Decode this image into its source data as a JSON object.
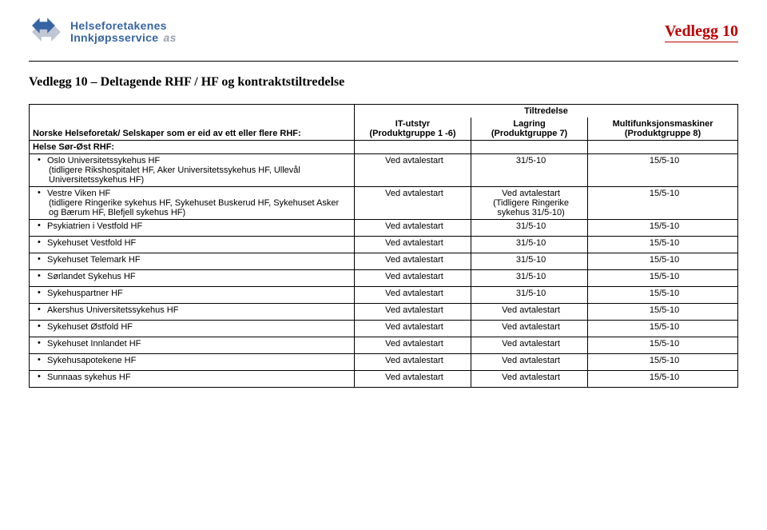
{
  "colors": {
    "brand_blue": "#3765a3",
    "brand_gray": "#9aa1b2",
    "vedlegg_red": "#c00000",
    "border": "#000000",
    "bg": "#ffffff"
  },
  "logo": {
    "line1": "Helseforetakenes",
    "line2": "Innkjøpsservice",
    "suffix": "as"
  },
  "vedlegg_label": "Vedlegg 10",
  "doc_title": "Vedlegg 10 – Deltagende RHF / HF og kontraktstiltredelse",
  "table": {
    "tiltredelse_header": "Tiltredelse",
    "col1_header": "Norske Helseforetak/ Selskaper som er eid av ett eller flere RHF:",
    "col2_header_l1": "IT-utstyr",
    "col2_header_l2": "(Produktgruppe 1 -6)",
    "col3_header_l1": "Lagring",
    "col3_header_l2": "(Produktgruppe 7)",
    "col4_header_l1": "Multifunksjonsmaskiner",
    "col4_header_l2": "(Produktgruppe 8)",
    "section": "Helse Sør-Øst RHF:",
    "rows": [
      {
        "name": "Oslo Universitetssykehus HF",
        "sub": "(tidligere Rikshospitalet HF, Aker Universitetssykehus HF, Ullevål Universitetssykehus HF)",
        "c2": "Ved avtalestart",
        "c3": "31/5-10",
        "c4": "15/5-10"
      },
      {
        "name": "Vestre Viken HF",
        "sub": "(tidligere Ringerike sykehus HF, Sykehuset Buskerud HF, Sykehuset Asker og Bærum HF, Blefjell sykehus HF)",
        "c2": "Ved avtalestart",
        "c3": "Ved avtalestart\n(Tidligere Ringerike sykehus 31/5-10)",
        "c4": "15/5-10"
      },
      {
        "name": "Psykiatrien i Vestfold HF",
        "c2": "Ved avtalestart",
        "c3": "31/5-10",
        "c4": "15/5-10"
      },
      {
        "name": "Sykehuset Vestfold HF",
        "c2": "Ved avtalestart",
        "c3": "31/5-10",
        "c4": "15/5-10"
      },
      {
        "name": "Sykehuset Telemark HF",
        "c2": "Ved avtalestart",
        "c3": "31/5-10",
        "c4": "15/5-10"
      },
      {
        "name": "Sørlandet Sykehus HF",
        "c2": "Ved avtalestart",
        "c3": "31/5-10",
        "c4": "15/5-10"
      },
      {
        "name": "Sykehuspartner HF",
        "c2": "Ved avtalestart",
        "c3": "31/5-10",
        "c4": "15/5-10"
      },
      {
        "name": "Akershus Universitetssykehus HF",
        "c2": "Ved avtalestart",
        "c3": "Ved avtalestart",
        "c4": "15/5-10"
      },
      {
        "name": "Sykehuset Østfold HF",
        "c2": "Ved avtalestart",
        "c3": "Ved avtalestart",
        "c4": "15/5-10"
      },
      {
        "name": "Sykehuset Innlandet HF",
        "c2": "Ved avtalestart",
        "c3": "Ved avtalestart",
        "c4": "15/5-10"
      },
      {
        "name": "Sykehusapotekene HF",
        "c2": "Ved avtalestart",
        "c3": "Ved avtalestart",
        "c4": "15/5-10"
      },
      {
        "name": "Sunnaas sykehus HF",
        "c2": "Ved avtalestart",
        "c3": "Ved avtalestart",
        "c4": "15/5-10"
      }
    ]
  }
}
